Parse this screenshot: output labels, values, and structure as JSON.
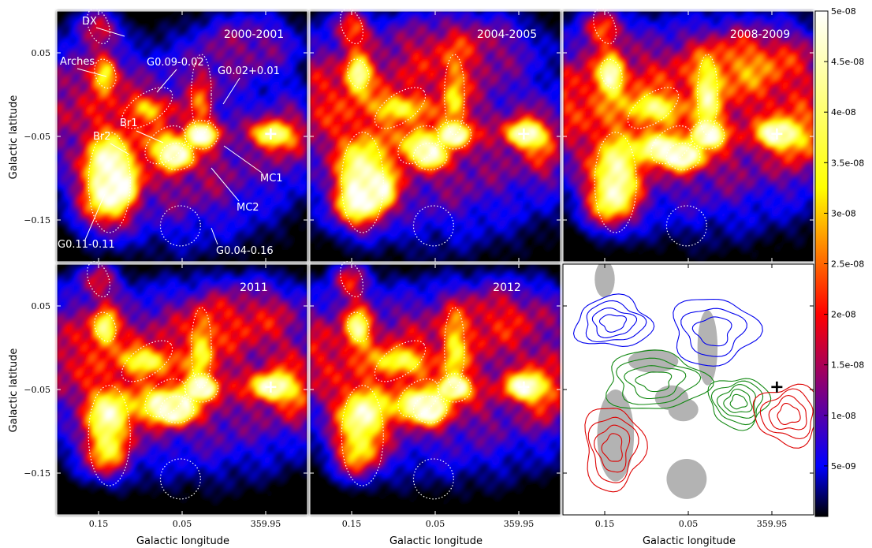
{
  "chart_data": {
    "type": "heatmap",
    "layout": "2x3 grid of sky maps with shared axes and a colorbar",
    "xlabel": "Galactic longitude",
    "ylabel": "Galactic latitude",
    "x_ticks": [
      "0.15",
      "0.05",
      "359.95"
    ],
    "y_ticks": [
      "0.05",
      "−0.05",
      "−0.15"
    ],
    "x_tick_values": [
      0.15,
      0.05,
      -0.05
    ],
    "y_tick_values": [
      0.05,
      -0.05,
      -0.15
    ],
    "xlim": [
      0.2,
      -0.1
    ],
    "ylim": [
      -0.2,
      0.1
    ],
    "colorbar": {
      "range": [
        0,
        5e-08
      ],
      "colors": [
        "#000000",
        "#0000ff",
        "#ff0000",
        "#ffff00",
        "#ffffff"
      ],
      "ticks": [
        "5e-09",
        "1e-08",
        "1.5e-08",
        "2e-08",
        "2.5e-08",
        "3e-08",
        "3.5e-08",
        "4e-08",
        "4.5e-08",
        "5e-08"
      ],
      "tick_values": [
        5e-09,
        1e-08,
        1.5e-08,
        2e-08,
        2.5e-08,
        3e-08,
        3.5e-08,
        4e-08,
        4.5e-08,
        5e-08
      ]
    },
    "reference_marker": {
      "symbol": "+",
      "l": -0.056,
      "b": -0.047
    },
    "regions": [
      {
        "id": "DX",
        "l": 0.15,
        "b": 0.082,
        "rl": 0.012,
        "rb": 0.022,
        "angle": -20
      },
      {
        "id": "Arches",
        "l": 0.142,
        "b": 0.025,
        "rl": 0.012,
        "rb": 0.018,
        "angle": -20
      },
      {
        "id": "G0.09-0.02",
        "l": 0.092,
        "b": -0.016,
        "rl": 0.035,
        "rb": 0.017,
        "angle": -35
      },
      {
        "id": "G0.02+0.01",
        "l": 0.027,
        "b": 0.0,
        "rl": 0.012,
        "rb": 0.048,
        "angle": 0
      },
      {
        "id": "Br1",
        "l": 0.07,
        "b": -0.06,
        "rl": 0.028,
        "rb": 0.018,
        "angle": -40
      },
      {
        "id": "Br2",
        "l": 0.137,
        "b": -0.105,
        "rl": 0.025,
        "rb": 0.06,
        "angle": 0
      },
      {
        "id": "MC1",
        "l": 0.027,
        "b": -0.048,
        "rl": 0.02,
        "rb": 0.017,
        "angle": 0
      },
      {
        "id": "MC2",
        "l": 0.056,
        "b": -0.074,
        "rl": 0.02,
        "rb": 0.016,
        "angle": 0
      },
      {
        "id": "G0.04-0.16",
        "l": 0.052,
        "b": -0.157,
        "rl": 0.024,
        "rb": 0.024,
        "angle": 0
      }
    ],
    "panels": [
      {
        "title": "2000-2001",
        "sources": [
          {
            "l": 0.2,
            "b": 0.0,
            "sl": 0.09,
            "sb": 0.05,
            "v": 0.3
          },
          {
            "l": 0.05,
            "b": -0.08,
            "sl": 0.1,
            "sb": 0.07,
            "v": 0.35
          },
          {
            "l": 0.15,
            "b": 0.08,
            "sl": 0.015,
            "sb": 0.015,
            "v": 0.4
          },
          {
            "l": 0.142,
            "b": 0.025,
            "sl": 0.01,
            "sb": 0.015,
            "v": 0.55
          },
          {
            "l": 0.092,
            "b": -0.016,
            "sl": 0.02,
            "sb": 0.01,
            "v": 0.32
          },
          {
            "l": 0.027,
            "b": -0.005,
            "sl": 0.01,
            "sb": 0.03,
            "v": 0.28
          },
          {
            "l": 0.07,
            "b": -0.06,
            "sl": 0.015,
            "sb": 0.012,
            "v": 0.38
          },
          {
            "l": 0.137,
            "b": -0.085,
            "sl": 0.02,
            "sb": 0.025,
            "v": 0.7
          },
          {
            "l": 0.142,
            "b": -0.125,
            "sl": 0.02,
            "sb": 0.025,
            "v": 0.62
          },
          {
            "l": 0.12,
            "b": -0.11,
            "sl": 0.012,
            "sb": 0.015,
            "v": 0.4
          },
          {
            "l": 0.027,
            "b": -0.048,
            "sl": 0.012,
            "sb": 0.008,
            "v": 0.9
          },
          {
            "l": 0.056,
            "b": -0.074,
            "sl": 0.012,
            "sb": 0.01,
            "v": 0.75
          },
          {
            "l": -0.056,
            "b": -0.047,
            "sl": 0.015,
            "sb": 0.01,
            "v": 0.7
          },
          {
            "l": -0.03,
            "b": 0.06,
            "sl": 0.05,
            "sb": 0.03,
            "v": 0.28
          },
          {
            "l": -0.08,
            "b": -0.05,
            "sl": 0.02,
            "sb": 0.03,
            "v": 0.3
          }
        ]
      },
      {
        "title": "2004-2005",
        "sources": [
          {
            "l": 0.2,
            "b": 0.0,
            "sl": 0.09,
            "sb": 0.05,
            "v": 0.3
          },
          {
            "l": 0.05,
            "b": -0.06,
            "sl": 0.12,
            "sb": 0.08,
            "v": 0.36
          },
          {
            "l": 0.15,
            "b": 0.08,
            "sl": 0.015,
            "sb": 0.015,
            "v": 0.4
          },
          {
            "l": 0.142,
            "b": 0.025,
            "sl": 0.01,
            "sb": 0.015,
            "v": 0.65
          },
          {
            "l": 0.092,
            "b": -0.016,
            "sl": 0.02,
            "sb": 0.01,
            "v": 0.4
          },
          {
            "l": 0.027,
            "b": -0.005,
            "sl": 0.01,
            "sb": 0.03,
            "v": 0.38
          },
          {
            "l": 0.07,
            "b": -0.06,
            "sl": 0.015,
            "sb": 0.012,
            "v": 0.5
          },
          {
            "l": 0.137,
            "b": -0.09,
            "sl": 0.02,
            "sb": 0.025,
            "v": 0.62
          },
          {
            "l": 0.142,
            "b": -0.13,
            "sl": 0.02,
            "sb": 0.02,
            "v": 0.72
          },
          {
            "l": 0.115,
            "b": -0.115,
            "sl": 0.012,
            "sb": 0.015,
            "v": 0.6
          },
          {
            "l": 0.027,
            "b": -0.048,
            "sl": 0.012,
            "sb": 0.008,
            "v": 0.9
          },
          {
            "l": 0.056,
            "b": -0.074,
            "sl": 0.012,
            "sb": 0.01,
            "v": 0.6
          },
          {
            "l": -0.056,
            "b": -0.047,
            "sl": 0.015,
            "sb": 0.01,
            "v": 0.78
          },
          {
            "l": 0.02,
            "b": 0.06,
            "sl": 0.06,
            "sb": 0.03,
            "v": 0.3
          },
          {
            "l": -0.08,
            "b": -0.06,
            "sl": 0.02,
            "sb": 0.03,
            "v": 0.3
          }
        ]
      },
      {
        "title": "2008-2009",
        "sources": [
          {
            "l": 0.2,
            "b": 0.0,
            "sl": 0.09,
            "sb": 0.05,
            "v": 0.32
          },
          {
            "l": 0.03,
            "b": -0.04,
            "sl": 0.13,
            "sb": 0.08,
            "v": 0.4
          },
          {
            "l": 0.15,
            "b": 0.08,
            "sl": 0.015,
            "sb": 0.015,
            "v": 0.42
          },
          {
            "l": 0.142,
            "b": 0.025,
            "sl": 0.01,
            "sb": 0.015,
            "v": 0.68
          },
          {
            "l": 0.092,
            "b": -0.016,
            "sl": 0.02,
            "sb": 0.01,
            "v": 0.42
          },
          {
            "l": 0.027,
            "b": -0.005,
            "sl": 0.01,
            "sb": 0.03,
            "v": 0.42
          },
          {
            "l": 0.085,
            "b": -0.065,
            "sl": 0.015,
            "sb": 0.01,
            "v": 0.8
          },
          {
            "l": 0.137,
            "b": -0.09,
            "sl": 0.02,
            "sb": 0.025,
            "v": 0.62
          },
          {
            "l": 0.142,
            "b": -0.13,
            "sl": 0.02,
            "sb": 0.02,
            "v": 0.6
          },
          {
            "l": 0.027,
            "b": -0.048,
            "sl": 0.012,
            "sb": 0.008,
            "v": 0.95
          },
          {
            "l": 0.056,
            "b": -0.074,
            "sl": 0.015,
            "sb": 0.01,
            "v": 0.85
          },
          {
            "l": -0.056,
            "b": -0.047,
            "sl": 0.015,
            "sb": 0.01,
            "v": 0.82
          },
          {
            "l": -0.03,
            "b": 0.04,
            "sl": 0.06,
            "sb": 0.03,
            "v": 0.36
          },
          {
            "l": -0.085,
            "b": -0.05,
            "sl": 0.02,
            "sb": 0.03,
            "v": 0.35
          }
        ]
      },
      {
        "title": "2011",
        "sources": [
          {
            "l": 0.2,
            "b": 0.0,
            "sl": 0.09,
            "sb": 0.05,
            "v": 0.3
          },
          {
            "l": 0.03,
            "b": -0.05,
            "sl": 0.12,
            "sb": 0.07,
            "v": 0.36
          },
          {
            "l": 0.15,
            "b": 0.08,
            "sl": 0.015,
            "sb": 0.015,
            "v": 0.35
          },
          {
            "l": 0.142,
            "b": 0.025,
            "sl": 0.01,
            "sb": 0.015,
            "v": 0.62
          },
          {
            "l": 0.092,
            "b": -0.016,
            "sl": 0.02,
            "sb": 0.01,
            "v": 0.45
          },
          {
            "l": 0.027,
            "b": -0.005,
            "sl": 0.01,
            "sb": 0.03,
            "v": 0.38
          },
          {
            "l": 0.07,
            "b": -0.07,
            "sl": 0.018,
            "sb": 0.012,
            "v": 0.85
          },
          {
            "l": 0.137,
            "b": -0.08,
            "sl": 0.02,
            "sb": 0.02,
            "v": 0.65
          },
          {
            "l": 0.142,
            "b": -0.125,
            "sl": 0.02,
            "sb": 0.02,
            "v": 0.55
          },
          {
            "l": 0.027,
            "b": -0.048,
            "sl": 0.012,
            "sb": 0.008,
            "v": 0.95
          },
          {
            "l": 0.056,
            "b": -0.074,
            "sl": 0.012,
            "sb": 0.01,
            "v": 0.7
          },
          {
            "l": -0.056,
            "b": -0.047,
            "sl": 0.015,
            "sb": 0.01,
            "v": 0.8
          },
          {
            "l": -0.03,
            "b": 0.04,
            "sl": 0.06,
            "sb": 0.03,
            "v": 0.3
          },
          {
            "l": -0.085,
            "b": -0.05,
            "sl": 0.02,
            "sb": 0.03,
            "v": 0.32
          }
        ]
      },
      {
        "title": "2012",
        "sources": [
          {
            "l": 0.2,
            "b": 0.0,
            "sl": 0.09,
            "sb": 0.05,
            "v": 0.3
          },
          {
            "l": 0.03,
            "b": -0.05,
            "sl": 0.12,
            "sb": 0.07,
            "v": 0.36
          },
          {
            "l": 0.15,
            "b": 0.08,
            "sl": 0.015,
            "sb": 0.015,
            "v": 0.35
          },
          {
            "l": 0.142,
            "b": 0.025,
            "sl": 0.01,
            "sb": 0.015,
            "v": 0.6
          },
          {
            "l": 0.092,
            "b": -0.016,
            "sl": 0.02,
            "sb": 0.01,
            "v": 0.45
          },
          {
            "l": 0.027,
            "b": -0.005,
            "sl": 0.01,
            "sb": 0.03,
            "v": 0.36
          },
          {
            "l": 0.07,
            "b": -0.07,
            "sl": 0.018,
            "sb": 0.012,
            "v": 0.78
          },
          {
            "l": 0.137,
            "b": -0.08,
            "sl": 0.02,
            "sb": 0.02,
            "v": 0.7
          },
          {
            "l": 0.142,
            "b": -0.125,
            "sl": 0.02,
            "sb": 0.02,
            "v": 0.55
          },
          {
            "l": 0.027,
            "b": -0.048,
            "sl": 0.012,
            "sb": 0.008,
            "v": 0.92
          },
          {
            "l": 0.056,
            "b": -0.074,
            "sl": 0.012,
            "sb": 0.01,
            "v": 0.65
          },
          {
            "l": -0.056,
            "b": -0.047,
            "sl": 0.015,
            "sb": 0.01,
            "v": 0.78
          },
          {
            "l": -0.03,
            "b": 0.04,
            "sl": 0.06,
            "sb": 0.03,
            "v": 0.3
          },
          {
            "l": -0.085,
            "b": -0.05,
            "sl": 0.02,
            "sb": 0.03,
            "v": 0.32
          }
        ]
      }
    ],
    "contour_panel": {
      "shaded_regions": [
        {
          "l": 0.15,
          "b": 0.082,
          "rl": 0.012,
          "rb": 0.022
        },
        {
          "l": 0.092,
          "b": -0.016,
          "rl": 0.03,
          "rb": 0.014
        },
        {
          "l": 0.027,
          "b": 0.0,
          "rl": 0.012,
          "rb": 0.045
        },
        {
          "l": 0.07,
          "b": -0.06,
          "rl": 0.02,
          "rb": 0.015
        },
        {
          "l": 0.137,
          "b": -0.105,
          "rl": 0.022,
          "rb": 0.055
        },
        {
          "l": 0.056,
          "b": -0.074,
          "rl": 0.018,
          "rb": 0.014
        },
        {
          "l": 0.052,
          "b": -0.157,
          "rl": 0.024,
          "rb": 0.024
        }
      ],
      "contour_sets": [
        {
          "color": "#0000ee",
          "centers": [
            {
              "l": 0.14,
              "b": 0.03,
              "rl": 0.045,
              "rb": 0.03,
              "levels": 4
            },
            {
              "l": 0.02,
              "b": 0.02,
              "rl": 0.05,
              "rb": 0.04,
              "levels": 3
            }
          ]
        },
        {
          "color": "#118811",
          "centers": [
            {
              "l": 0.09,
              "b": -0.04,
              "rl": 0.06,
              "rb": 0.035,
              "levels": 4
            },
            {
              "l": -0.01,
              "b": -0.065,
              "rl": 0.035,
              "rb": 0.03,
              "levels": 5
            }
          ]
        },
        {
          "color": "#dd0000",
          "centers": [
            {
              "l": 0.14,
              "b": -0.12,
              "rl": 0.035,
              "rb": 0.05,
              "levels": 4
            },
            {
              "l": -0.07,
              "b": -0.08,
              "rl": 0.04,
              "rb": 0.035,
              "levels": 4
            }
          ]
        }
      ]
    }
  }
}
